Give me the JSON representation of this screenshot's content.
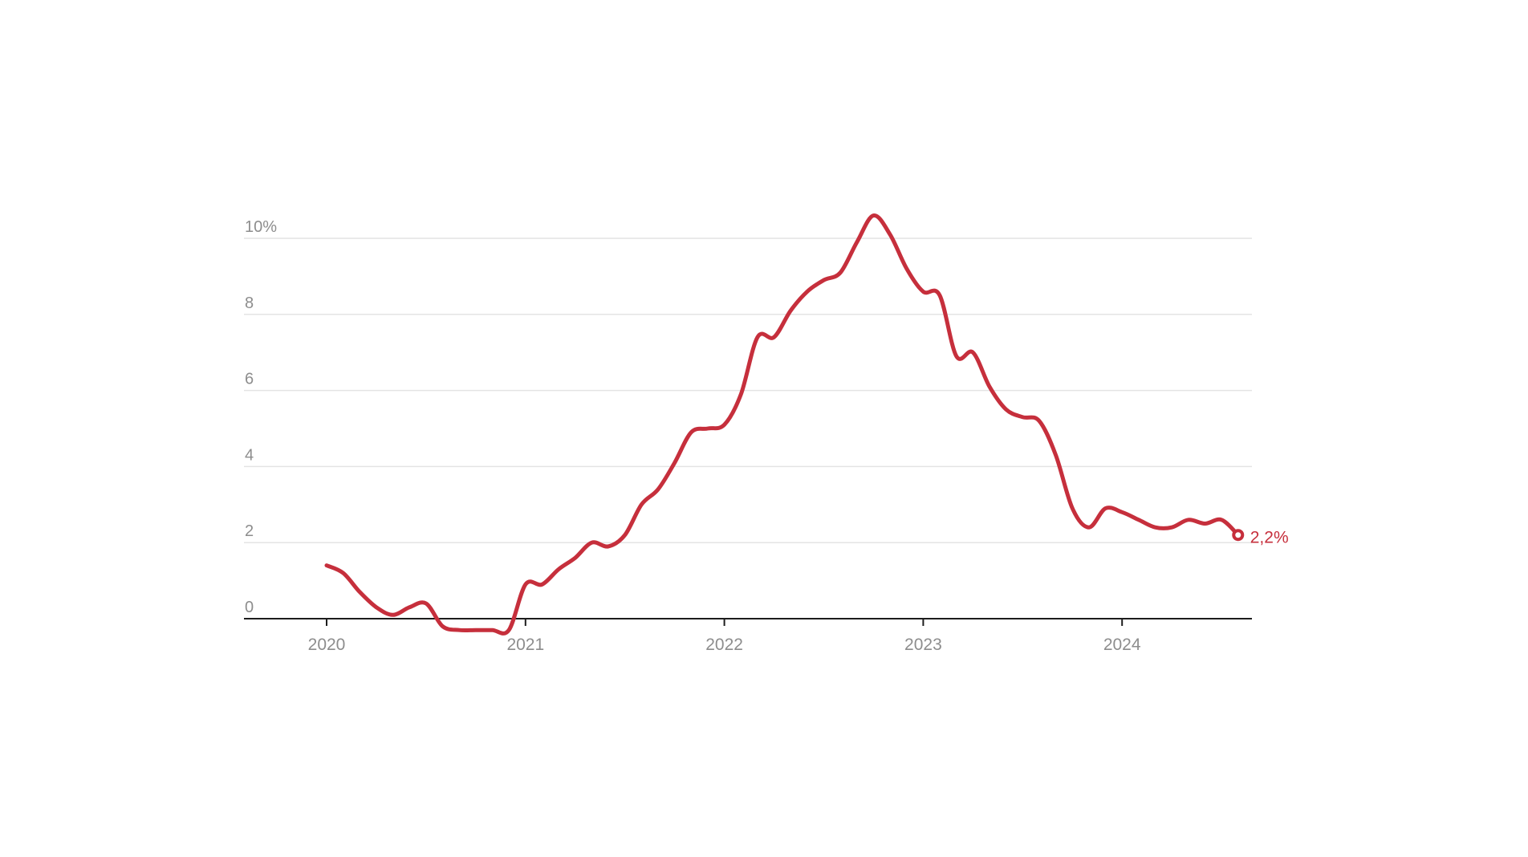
{
  "chart_data": {
    "type": "line",
    "title": "",
    "xlabel": "",
    "ylabel": "",
    "x": [
      "2020-01",
      "2020-02",
      "2020-03",
      "2020-04",
      "2020-05",
      "2020-06",
      "2020-07",
      "2020-08",
      "2020-09",
      "2020-10",
      "2020-11",
      "2020-12",
      "2021-01",
      "2021-02",
      "2021-03",
      "2021-04",
      "2021-05",
      "2021-06",
      "2021-07",
      "2021-08",
      "2021-09",
      "2021-10",
      "2021-11",
      "2021-12",
      "2022-01",
      "2022-02",
      "2022-03",
      "2022-04",
      "2022-05",
      "2022-06",
      "2022-07",
      "2022-08",
      "2022-09",
      "2022-10",
      "2022-11",
      "2022-12",
      "2023-01",
      "2023-02",
      "2023-03",
      "2023-04",
      "2023-05",
      "2023-06",
      "2023-07",
      "2023-08",
      "2023-09",
      "2023-10",
      "2023-11",
      "2023-12",
      "2024-01",
      "2024-02",
      "2024-03",
      "2024-04",
      "2024-05",
      "2024-06",
      "2024-07",
      "2024-08"
    ],
    "series": [
      {
        "values": [
          1.4,
          1.2,
          0.7,
          0.3,
          0.1,
          0.3,
          0.4,
          -0.2,
          -0.3,
          -0.3,
          -0.3,
          -0.3,
          0.9,
          0.9,
          1.3,
          1.6,
          2.0,
          1.9,
          2.2,
          3.0,
          3.4,
          4.1,
          4.9,
          5.0,
          5.1,
          5.9,
          7.4,
          7.4,
          8.1,
          8.6,
          8.9,
          9.1,
          9.9,
          10.6,
          10.1,
          9.2,
          8.6,
          8.5,
          6.9,
          7.0,
          6.1,
          5.5,
          5.3,
          5.2,
          4.3,
          2.9,
          2.4,
          2.9,
          2.8,
          2.6,
          2.4,
          2.4,
          2.6,
          2.5,
          2.6,
          2.2
        ]
      }
    ],
    "end_label": "2,2%",
    "yticks": [
      {
        "value": 0,
        "label": "0"
      },
      {
        "value": 2,
        "label": "2"
      },
      {
        "value": 4,
        "label": "4"
      },
      {
        "value": 6,
        "label": "6"
      },
      {
        "value": 8,
        "label": "8"
      },
      {
        "value": 10,
        "label": "10%"
      }
    ],
    "xticks": [
      {
        "month_index": 0,
        "label": "2020"
      },
      {
        "month_index": 12,
        "label": "2021"
      },
      {
        "month_index": 24,
        "label": "2022"
      },
      {
        "month_index": 36,
        "label": "2023"
      },
      {
        "month_index": 48,
        "label": "2024"
      }
    ],
    "ylim": [
      -0.5,
      10.8
    ],
    "grid": true,
    "legend": "none",
    "colors": {
      "line": "#c62f3c",
      "marker_fill": "#ffffff",
      "grid": "#e4e4e4",
      "axis": "#1d1d1d",
      "tick_label": "#8d8d8d",
      "background": "#ffffff"
    }
  }
}
